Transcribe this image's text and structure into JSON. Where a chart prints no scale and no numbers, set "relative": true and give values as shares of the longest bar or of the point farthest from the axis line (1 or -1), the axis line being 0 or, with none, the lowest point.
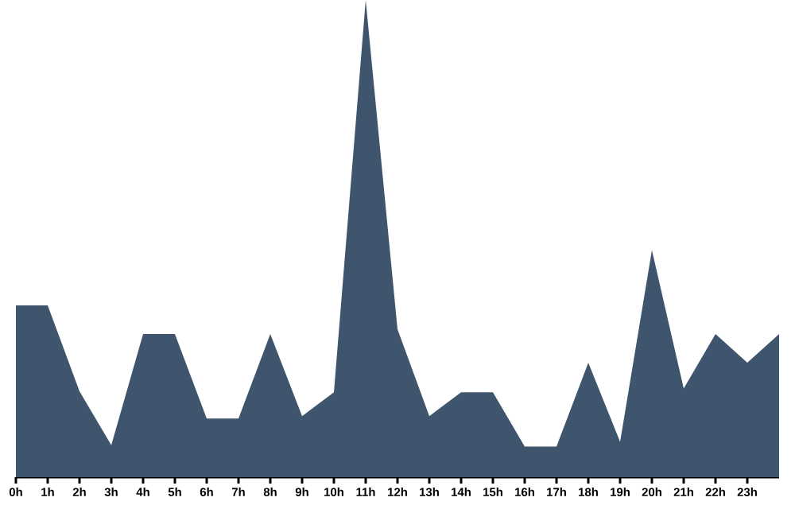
{
  "chart_data": {
    "type": "area",
    "relative": true,
    "color": "#3f556e",
    "categories": [
      "0h",
      "1h",
      "2h",
      "3h",
      "4h",
      "5h",
      "6h",
      "7h",
      "8h",
      "9h",
      "10h",
      "11h",
      "12h",
      "13h",
      "14h",
      "15h",
      "16h",
      "17h",
      "18h",
      "19h",
      "20h",
      "21h",
      "22h",
      "23h",
      null
    ],
    "values": [
      0.36,
      0.36,
      0.18,
      0.067,
      0.3,
      0.3,
      0.123,
      0.123,
      0.3,
      0.128,
      0.178,
      1,
      0.31,
      0.128,
      0.178,
      0.178,
      0.064,
      0.064,
      0.24,
      0.074,
      0.476,
      0.186,
      0.3,
      0.24,
      0.3
    ]
  }
}
